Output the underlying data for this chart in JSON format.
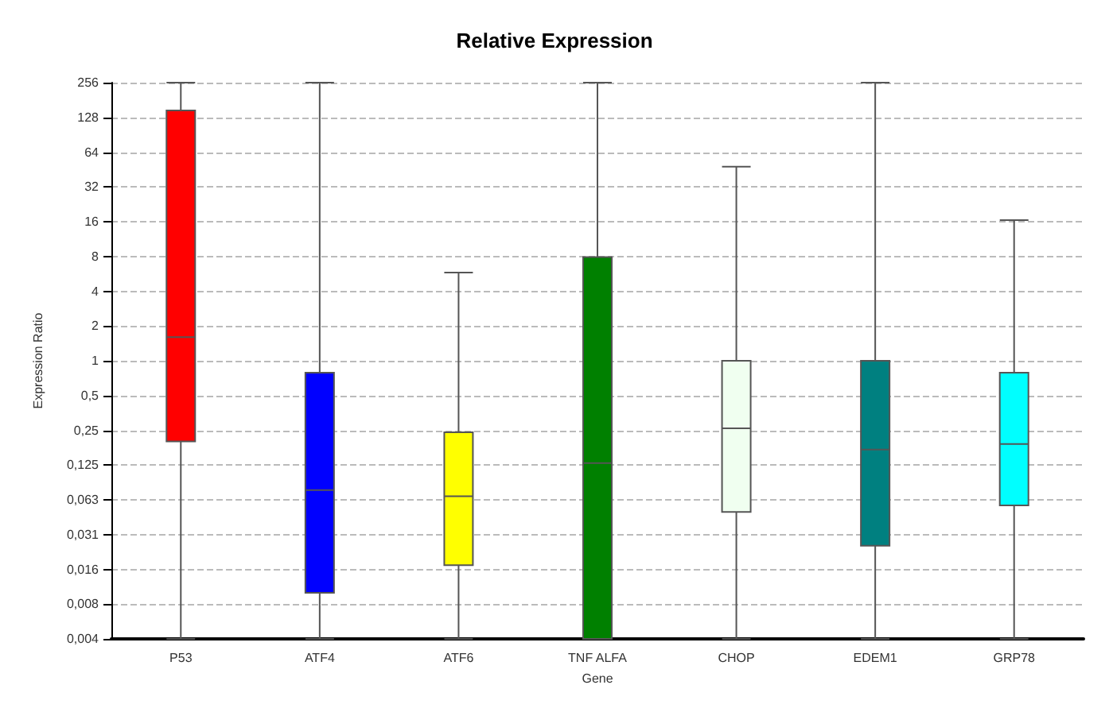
{
  "chart_data": {
    "type": "box",
    "title": "Relative Expression",
    "xlabel": "Gene",
    "ylabel": "Expression Ratio",
    "categories": [
      "P53",
      "ATF4",
      "ATF6",
      "TNF ALFA",
      "CHOP",
      "EDEM1",
      "GRP78"
    ],
    "colors": [
      "#ff0000",
      "#0000ff",
      "#ffff00",
      "#008000",
      "#f0fff0",
      "#008080",
      "#00ffff"
    ],
    "boxes": [
      {
        "low": 0.00390625,
        "q1": 0.2,
        "median": 1.6,
        "q3": 147,
        "high": 256
      },
      {
        "low": 0.00390625,
        "q1": 0.0098,
        "median": 0.076,
        "q3": 0.79,
        "high": 256
      },
      {
        "low": 0.00390625,
        "q1": 0.017,
        "median": 0.067,
        "q3": 0.24,
        "high": 5.8
      },
      {
        "low": 0.00390625,
        "q1": 0.00390625,
        "median": 0.13,
        "q3": 7.9,
        "high": 256
      },
      {
        "low": 0.00390625,
        "q1": 0.049,
        "median": 0.26,
        "q3": 1,
        "high": 48
      },
      {
        "low": 0.00390625,
        "q1": 0.025,
        "median": 0.17,
        "q3": 1,
        "high": 256
      },
      {
        "low": 0.00390625,
        "q1": 0.056,
        "median": 0.19,
        "q3": 0.79,
        "high": 16.5
      }
    ],
    "log": "y",
    "ylim": [
      0.00390625,
      256
    ],
    "yticks": [
      {
        "value": 0.00390625,
        "label": "0,004"
      },
      {
        "value": 0.0078125,
        "label": "0,008"
      },
      {
        "value": 0.015625,
        "label": "0,016"
      },
      {
        "value": 0.03125,
        "label": "0,031"
      },
      {
        "value": 0.0625,
        "label": "0,063"
      },
      {
        "value": 0.125,
        "label": "0,125"
      },
      {
        "value": 0.25,
        "label": "0,25"
      },
      {
        "value": 0.5,
        "label": "0,5"
      },
      1,
      2,
      4,
      8,
      16,
      32,
      64,
      128,
      256
    ],
    "grid": "y"
  }
}
